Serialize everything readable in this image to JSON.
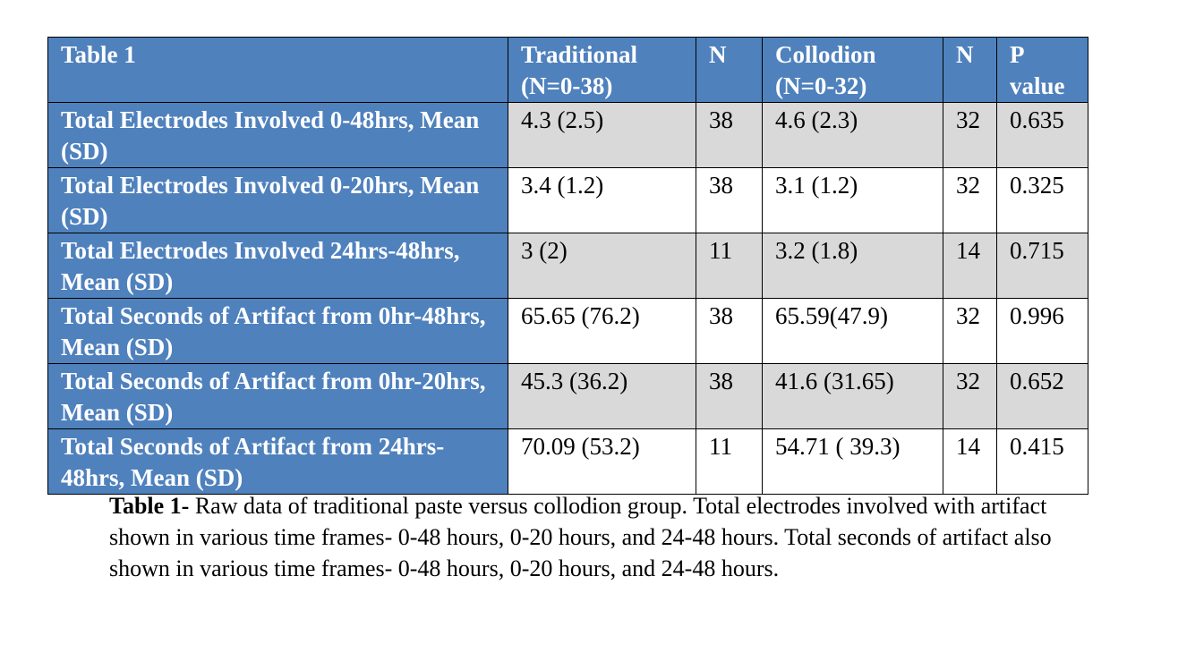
{
  "table": {
    "header": [
      "Table 1",
      "Traditional (N=0-38)",
      "N",
      "Collodion (N=0-32)",
      "N",
      "P value"
    ],
    "rows": [
      [
        "Total Electrodes Involved 0-48hrs, Mean (SD)",
        "4.3 (2.5)",
        "38",
        "4.6 (2.3)",
        "32",
        "0.635"
      ],
      [
        "Total Electrodes Involved 0-20hrs, Mean (SD)",
        "3.4 (1.2)",
        "38",
        "3.1 (1.2)",
        "32",
        "0.325"
      ],
      [
        "Total Electrodes Involved 24hrs-48hrs, Mean (SD)",
        "3 (2)",
        "11",
        "3.2 (1.8)",
        "14",
        "0.715"
      ],
      [
        "Total Seconds of Artifact from 0hr-48hrs, Mean (SD)",
        "65.65 (76.2)",
        "38",
        "65.59(47.9)",
        "32",
        "0.996"
      ],
      [
        "Total Seconds of Artifact from 0hr-20hrs, Mean (SD)",
        "45.3 (36.2)",
        "38",
        "41.6 (31.65)",
        "32",
        "0.652"
      ],
      [
        "Total Seconds of Artifact from 24hrs-48hrs, Mean (SD)",
        "70.09 (53.2)",
        "11",
        "54.71 ( 39.3)",
        "14",
        "0.415"
      ]
    ]
  },
  "caption": {
    "label": "Table 1-",
    "text": "Raw data of traditional paste versus collodion group. Total electrodes involved with artifact shown in various time frames- 0-48 hours, 0-20 hours, and 24-48 hours. Total seconds of artifact also shown in various time frames- 0-48 hours, 0-20 hours, and 24-48 hours."
  }
}
